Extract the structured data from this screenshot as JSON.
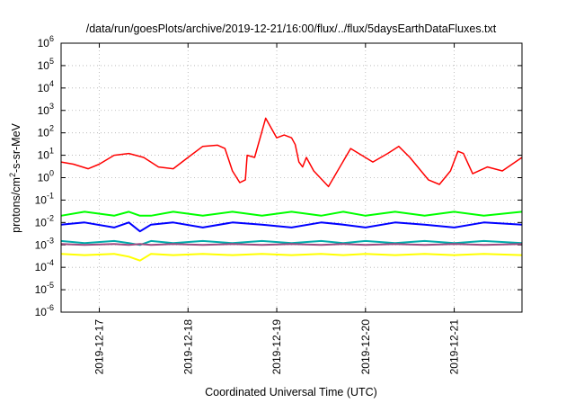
{
  "chart_data": {
    "type": "line",
    "title": "/data/run/goesPlots/archive/2019-12-21/16:00/flux/../flux/5daysEarthDataFluxes.txt",
    "xlabel": "Coordinated Universal Time (UTC)",
    "ylabel": {
      "base": "protons/cm",
      "sup": "2",
      "rest": "-s-sr-MeV"
    },
    "yscale": "log",
    "ylim": [
      1e-06,
      1000000.0
    ],
    "xlim": [
      "2019-12-16T13:40",
      "2019-12-21T18:20"
    ],
    "grid": true,
    "x_ticks": [
      "2019-12-17",
      "2019-12-18",
      "2019-12-19",
      "2019-12-20",
      "2019-12-21"
    ],
    "y_ticks": [
      {
        "value": 1e-06,
        "base": "10",
        "exp": "-6"
      },
      {
        "value": 1e-05,
        "base": "10",
        "exp": "-5"
      },
      {
        "value": 0.0001,
        "base": "10",
        "exp": "-4"
      },
      {
        "value": 0.001,
        "base": "10",
        "exp": "-3"
      },
      {
        "value": 0.01,
        "base": "10",
        "exp": "-2"
      },
      {
        "value": 0.1,
        "base": "10",
        "exp": "-1"
      },
      {
        "value": 1,
        "base": "10",
        "exp": "0"
      },
      {
        "value": 10,
        "base": "10",
        "exp": "1"
      },
      {
        "value": 100,
        "base": "10",
        "exp": "2"
      },
      {
        "value": 1000,
        "base": "10",
        "exp": "3"
      },
      {
        "value": 10000,
        "base": "10",
        "exp": "4"
      },
      {
        "value": 100000,
        "base": "10",
        "exp": "5"
      },
      {
        "value": 1000000,
        "base": "10",
        "exp": "6"
      }
    ],
    "series": [
      {
        "color": "#ffff00",
        "x": [
          "2019-12-16T13:40",
          "2019-12-16T20:00",
          "2019-12-17T04:00",
          "2019-12-17T08:00",
          "2019-12-17T11:00",
          "2019-12-17T14:00",
          "2019-12-17T20:00",
          "2019-12-18T04:00",
          "2019-12-18T12:00",
          "2019-12-18T20:00",
          "2019-12-19T04:00",
          "2019-12-19T12:00",
          "2019-12-19T18:00",
          "2019-12-20T00:00",
          "2019-12-20T08:00",
          "2019-12-20T16:00",
          "2019-12-21T00:00",
          "2019-12-21T08:00",
          "2019-12-21T18:20"
        ],
        "y": [
          0.0004,
          0.00035,
          0.0004,
          0.0003,
          0.0002,
          0.0004,
          0.00035,
          0.0004,
          0.00035,
          0.0004,
          0.00035,
          0.0004,
          0.00035,
          0.0004,
          0.00035,
          0.0004,
          0.00035,
          0.0004,
          0.00035
        ]
      },
      {
        "color": "#00ff00",
        "x": [
          "2019-12-16T13:40",
          "2019-12-16T20:00",
          "2019-12-17T04:00",
          "2019-12-17T08:00",
          "2019-12-17T11:00",
          "2019-12-17T14:00",
          "2019-12-17T20:00",
          "2019-12-18T04:00",
          "2019-12-18T12:00",
          "2019-12-18T20:00",
          "2019-12-19T04:00",
          "2019-12-19T12:00",
          "2019-12-19T18:00",
          "2019-12-20T00:00",
          "2019-12-20T08:00",
          "2019-12-20T16:00",
          "2019-12-21T00:00",
          "2019-12-21T08:00",
          "2019-12-21T18:20"
        ],
        "y": [
          0.02,
          0.03,
          0.02,
          0.03,
          0.02,
          0.02,
          0.03,
          0.02,
          0.03,
          0.02,
          0.03,
          0.02,
          0.03,
          0.02,
          0.03,
          0.02,
          0.03,
          0.02,
          0.03
        ]
      },
      {
        "color": "#00aaaa",
        "x": [
          "2019-12-16T13:40",
          "2019-12-16T20:00",
          "2019-12-17T04:00",
          "2019-12-17T08:00",
          "2019-12-17T11:00",
          "2019-12-17T14:00",
          "2019-12-17T20:00",
          "2019-12-18T04:00",
          "2019-12-18T12:00",
          "2019-12-18T20:00",
          "2019-12-19T04:00",
          "2019-12-19T12:00",
          "2019-12-19T18:00",
          "2019-12-20T00:00",
          "2019-12-20T08:00",
          "2019-12-20T16:00",
          "2019-12-21T00:00",
          "2019-12-21T08:00",
          "2019-12-21T18:20"
        ],
        "y": [
          0.0015,
          0.0012,
          0.0015,
          0.0012,
          0.001,
          0.0015,
          0.0012,
          0.0015,
          0.0012,
          0.0015,
          0.0012,
          0.0015,
          0.0012,
          0.0015,
          0.0012,
          0.0015,
          0.0012,
          0.0015,
          0.0012
        ]
      },
      {
        "color": "#0000ff",
        "x": [
          "2019-12-16T13:40",
          "2019-12-16T20:00",
          "2019-12-17T04:00",
          "2019-12-17T08:00",
          "2019-12-17T11:00",
          "2019-12-17T14:00",
          "2019-12-17T20:00",
          "2019-12-18T04:00",
          "2019-12-18T12:00",
          "2019-12-18T20:00",
          "2019-12-19T04:00",
          "2019-12-19T12:00",
          "2019-12-19T18:00",
          "2019-12-20T00:00",
          "2019-12-20T08:00",
          "2019-12-20T16:00",
          "2019-12-21T00:00",
          "2019-12-21T08:00",
          "2019-12-21T18:20"
        ],
        "y": [
          0.008,
          0.01,
          0.006,
          0.01,
          0.004,
          0.008,
          0.01,
          0.006,
          0.01,
          0.008,
          0.006,
          0.01,
          0.008,
          0.006,
          0.01,
          0.008,
          0.006,
          0.01,
          0.008
        ]
      },
      {
        "color": "#9e4a80",
        "x": [
          "2019-12-16T13:40",
          "2019-12-16T20:00",
          "2019-12-17T04:00",
          "2019-12-17T08:00",
          "2019-12-17T11:00",
          "2019-12-17T14:00",
          "2019-12-17T20:00",
          "2019-12-18T04:00",
          "2019-12-18T12:00",
          "2019-12-18T20:00",
          "2019-12-19T04:00",
          "2019-12-19T12:00",
          "2019-12-19T18:00",
          "2019-12-20T00:00",
          "2019-12-20T08:00",
          "2019-12-20T16:00",
          "2019-12-21T00:00",
          "2019-12-21T08:00",
          "2019-12-21T18:20"
        ],
        "y": [
          0.0011,
          0.001,
          0.0011,
          0.001,
          0.0011,
          0.001,
          0.0011,
          0.001,
          0.0011,
          0.001,
          0.0011,
          0.001,
          0.0011,
          0.001,
          0.0011,
          0.001,
          0.0011,
          0.001,
          0.0011
        ]
      },
      {
        "color": "#ff0000",
        "x": [
          "2019-12-16T13:40",
          "2019-12-16T17:00",
          "2019-12-16T21:00",
          "2019-12-17T00:00",
          "2019-12-17T04:00",
          "2019-12-17T08:00",
          "2019-12-17T12:00",
          "2019-12-17T16:00",
          "2019-12-17T20:00",
          "2019-12-18T00:00",
          "2019-12-18T04:00",
          "2019-12-18T08:00",
          "2019-12-18T10:00",
          "2019-12-18T12:00",
          "2019-12-18T14:00",
          "2019-12-18T15:30",
          "2019-12-18T16:00",
          "2019-12-18T18:00",
          "2019-12-18T21:00",
          "2019-12-19T00:00",
          "2019-12-19T02:00",
          "2019-12-19T04:00",
          "2019-12-19T05:00",
          "2019-12-19T06:00",
          "2019-12-19T07:00",
          "2019-12-19T08:00",
          "2019-12-19T10:00",
          "2019-12-19T14:00",
          "2019-12-19T20:00",
          "2019-12-20T02:00",
          "2019-12-20T06:00",
          "2019-12-20T09:00",
          "2019-12-20T12:00",
          "2019-12-20T17:00",
          "2019-12-20T20:00",
          "2019-12-20T23:00",
          "2019-12-21T01:00",
          "2019-12-21T02:30",
          "2019-12-21T05:00",
          "2019-12-21T09:00",
          "2019-12-21T13:00",
          "2019-12-21T18:20"
        ],
        "y": [
          5,
          4,
          2.5,
          4,
          10,
          12,
          8,
          3,
          2.5,
          8,
          25,
          28,
          20,
          2,
          0.6,
          0.8,
          10,
          8,
          450,
          60,
          80,
          60,
          30,
          5,
          3,
          8,
          2,
          0.4,
          20,
          5,
          12,
          25,
          8,
          0.8,
          0.5,
          2,
          15,
          12,
          1.5,
          3,
          2,
          8
        ]
      }
    ]
  }
}
